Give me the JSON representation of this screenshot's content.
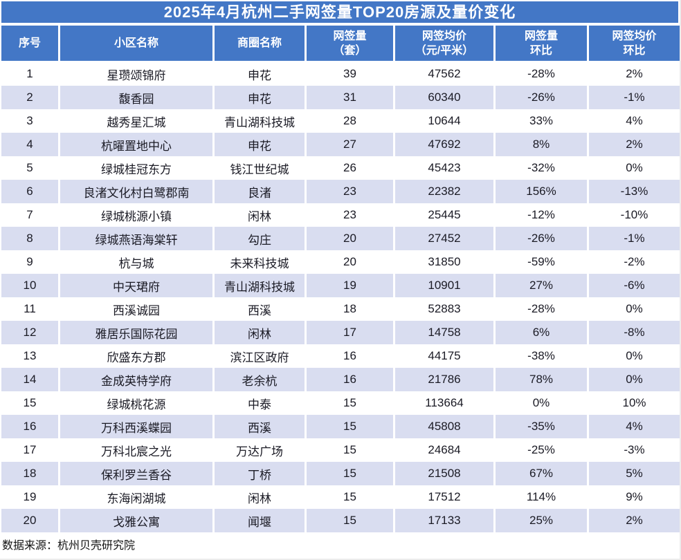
{
  "chart_data": {
    "type": "table",
    "title": "2025年4月杭州二手网签量TOP20房源及量价变化",
    "columns": [
      {
        "key": "rank",
        "label": "序号"
      },
      {
        "key": "community-name",
        "label": "小区名称"
      },
      {
        "key": "district-name",
        "label": "商圈名称"
      },
      {
        "key": "signed-volume",
        "label": "网签量\n（套）"
      },
      {
        "key": "avg-price",
        "label": "网签均价\n（元/平米）"
      },
      {
        "key": "volume-mom",
        "label": "网签量\n环比"
      },
      {
        "key": "price-mom",
        "label": "网签均价\n环比"
      }
    ],
    "rows": [
      [
        "1",
        "星瓒颂锦府",
        "申花",
        "39",
        "47562",
        "-28%",
        "2%"
      ],
      [
        "2",
        "馥香园",
        "申花",
        "31",
        "60340",
        "-26%",
        "-1%"
      ],
      [
        "3",
        "越秀星汇城",
        "青山湖科技城",
        "28",
        "10644",
        "33%",
        "4%"
      ],
      [
        "4",
        "杭曜置地中心",
        "申花",
        "27",
        "47692",
        "8%",
        "2%"
      ],
      [
        "5",
        "绿城桂冠东方",
        "钱江世纪城",
        "26",
        "45423",
        "-32%",
        "0%"
      ],
      [
        "6",
        "良渚文化村白鹭郡南",
        "良渚",
        "23",
        "22382",
        "156%",
        "-13%"
      ],
      [
        "7",
        "绿城桃源小镇",
        "闲林",
        "23",
        "25445",
        "-12%",
        "-10%"
      ],
      [
        "8",
        "绿城燕语海棠轩",
        "勾庄",
        "20",
        "27452",
        "-26%",
        "-1%"
      ],
      [
        "9",
        "杭与城",
        "未来科技城",
        "20",
        "31850",
        "-59%",
        "-2%"
      ],
      [
        "10",
        "中天珺府",
        "青山湖科技城",
        "19",
        "10901",
        "27%",
        "-6%"
      ],
      [
        "11",
        "西溪诚园",
        "西溪",
        "18",
        "52883",
        "-28%",
        "0%"
      ],
      [
        "12",
        "雅居乐国际花园",
        "闲林",
        "17",
        "14758",
        "6%",
        "-8%"
      ],
      [
        "13",
        "欣盛东方郡",
        "滨江区政府",
        "16",
        "44175",
        "-38%",
        "0%"
      ],
      [
        "14",
        "金成英特学府",
        "老余杭",
        "16",
        "21786",
        "78%",
        "0%"
      ],
      [
        "15",
        "绿城桃花源",
        "中泰",
        "15",
        "113664",
        "0%",
        "10%"
      ],
      [
        "16",
        "万科西溪蝶园",
        "西溪",
        "15",
        "45808",
        "-35%",
        "4%"
      ],
      [
        "17",
        "万科北宸之光",
        "万达广场",
        "15",
        "24684",
        "-25%",
        "-3%"
      ],
      [
        "18",
        "保利罗兰香谷",
        "丁桥",
        "15",
        "21508",
        "67%",
        "5%"
      ],
      [
        "19",
        "东海闲湖城",
        "闲林",
        "15",
        "17512",
        "114%",
        "9%"
      ],
      [
        "20",
        "戈雅公寓",
        "闻堰",
        "15",
        "17133",
        "25%",
        "2%"
      ]
    ]
  },
  "footer": {
    "source": "数据来源：杭州贝壳研究院"
  },
  "colors": {
    "header_blue": "#4377C6",
    "stripe": "#D9DDF0",
    "text": "#1a1a24"
  }
}
